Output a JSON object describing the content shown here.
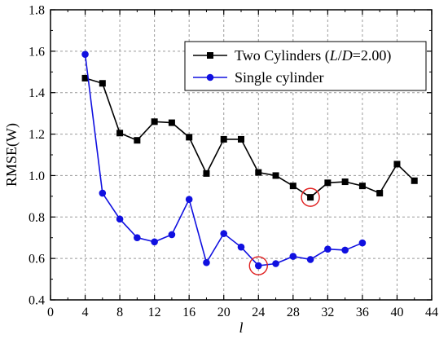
{
  "chart_data": {
    "type": "line",
    "xlabel": "l",
    "ylabel": "RMSE(W)",
    "xlim": [
      0,
      44
    ],
    "ylim": [
      0.4,
      1.8
    ],
    "xticks": [
      0,
      4,
      8,
      12,
      16,
      20,
      24,
      28,
      32,
      36,
      40,
      44
    ],
    "yticks": [
      0.4,
      0.6,
      0.8,
      1.0,
      1.2,
      1.4,
      1.6,
      1.8
    ],
    "xtick_labels": [
      "0",
      "4",
      "8",
      "12",
      "16",
      "20",
      "24",
      "28",
      "32",
      "36",
      "40",
      "44"
    ],
    "ytick_labels": [
      "0.4",
      "0.6",
      "0.8",
      "1.0",
      "1.2",
      "1.4",
      "1.6",
      "1.8"
    ],
    "grid": true,
    "legend_position": "top-right",
    "series": [
      {
        "name": "Two Cylinders (L/D=2.00)",
        "legend_parts": [
          "Two Cylinders (",
          "L",
          "/",
          "D",
          "=2.00)"
        ],
        "color": "#000000",
        "marker": "square",
        "x": [
          4,
          6,
          8,
          10,
          12,
          14,
          16,
          18,
          20,
          22,
          24,
          26,
          28,
          30,
          32,
          34,
          36,
          38,
          40,
          42
        ],
        "y": [
          1.47,
          1.445,
          1.205,
          1.17,
          1.26,
          1.255,
          1.185,
          1.01,
          1.175,
          1.175,
          1.015,
          1.0,
          0.95,
          0.895,
          0.965,
          0.97,
          0.95,
          0.915,
          1.055,
          0.975
        ]
      },
      {
        "name": "Single cylinder",
        "color": "#1010e0",
        "marker": "circle",
        "x": [
          4,
          6,
          8,
          10,
          12,
          14,
          16,
          18,
          20,
          22,
          24,
          26,
          28,
          30,
          32,
          34,
          36
        ],
        "y": [
          1.585,
          0.915,
          0.79,
          0.7,
          0.68,
          0.715,
          0.885,
          0.58,
          0.72,
          0.655,
          0.565,
          0.575,
          0.61,
          0.595,
          0.645,
          0.64,
          0.675
        ]
      }
    ],
    "highlights": [
      {
        "x": 30,
        "y": 0.895,
        "color": "#e02020"
      },
      {
        "x": 24,
        "y": 0.565,
        "color": "#e02020"
      }
    ]
  }
}
